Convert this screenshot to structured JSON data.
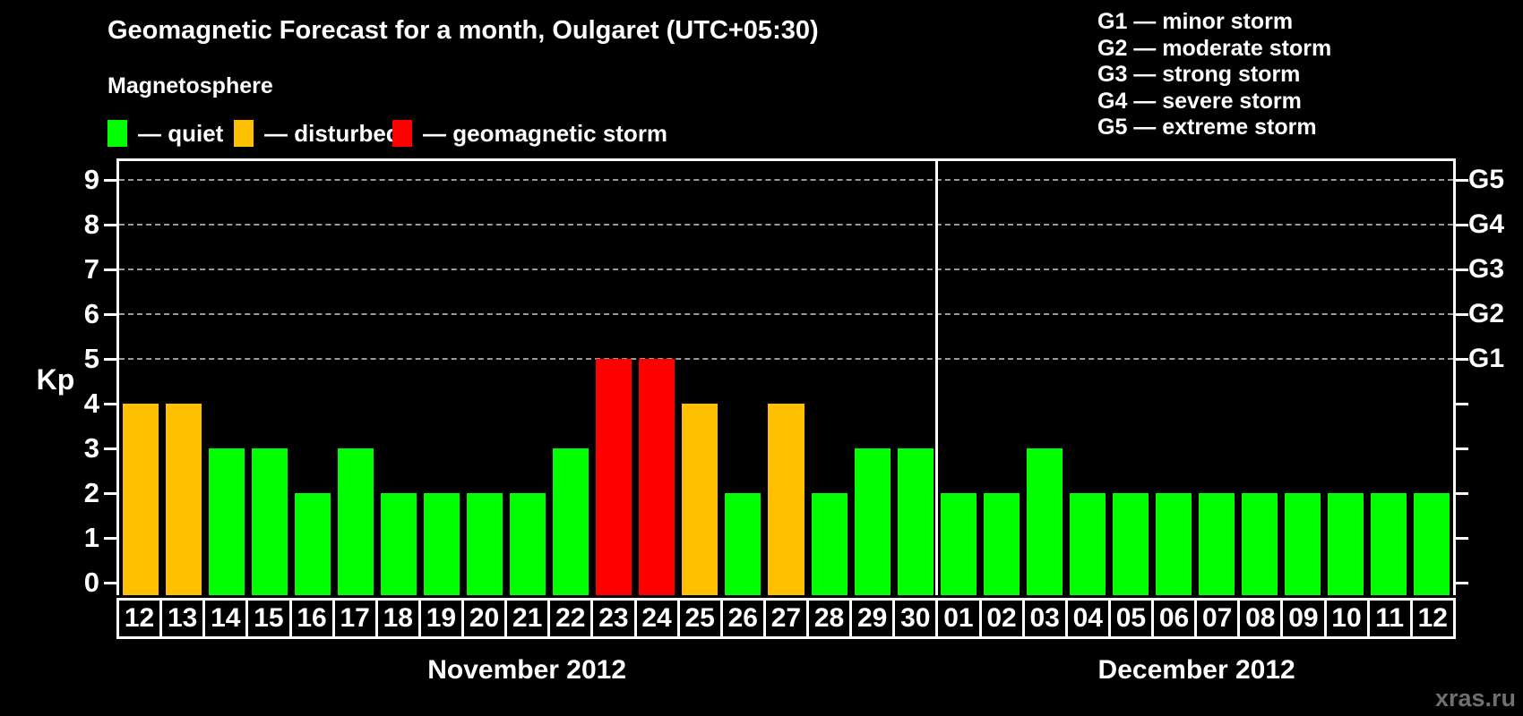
{
  "title": "Geomagnetic Forecast for a month, Oulgaret (UTC+05:30)",
  "subtitle": "Magnetosphere",
  "bar_legend": [
    {
      "key": "quiet",
      "label": "— quiet",
      "color": "#00ff00"
    },
    {
      "key": "disturbed",
      "label": "— disturbed",
      "color": "#ffc000"
    },
    {
      "key": "storm",
      "label": "— geomagnetic storm",
      "color": "#ff0000"
    }
  ],
  "storm_scale": [
    "G1 — minor storm",
    "G2 — moderate storm",
    "G3 — strong storm",
    "G4 — severe storm",
    "G5 — extreme storm"
  ],
  "watermark": "xras.ru",
  "chart_data": {
    "type": "bar",
    "ylabel": "Kp",
    "ylim": [
      0,
      9.4
    ],
    "yticks": [
      0,
      1,
      2,
      3,
      4,
      5,
      6,
      7,
      8,
      9
    ],
    "grid_levels": [
      5,
      6,
      7,
      8,
      9
    ],
    "grid_on": true,
    "legend_position": "top",
    "right_axis_labels": [
      {
        "kp": 5,
        "label": "G1"
      },
      {
        "kp": 6,
        "label": "G2"
      },
      {
        "kp": 7,
        "label": "G3"
      },
      {
        "kp": 8,
        "label": "G4"
      },
      {
        "kp": 9,
        "label": "G5"
      }
    ],
    "colors": {
      "quiet": "#00ff00",
      "disturbed": "#ffc000",
      "storm": "#ff0000"
    },
    "months": [
      {
        "label": "November 2012",
        "days": [
          {
            "day": "12",
            "kp": 4,
            "state": "disturbed"
          },
          {
            "day": "13",
            "kp": 4,
            "state": "disturbed"
          },
          {
            "day": "14",
            "kp": 3,
            "state": "quiet"
          },
          {
            "day": "15",
            "kp": 3,
            "state": "quiet"
          },
          {
            "day": "16",
            "kp": 2,
            "state": "quiet"
          },
          {
            "day": "17",
            "kp": 3,
            "state": "quiet"
          },
          {
            "day": "18",
            "kp": 2,
            "state": "quiet"
          },
          {
            "day": "19",
            "kp": 2,
            "state": "quiet"
          },
          {
            "day": "20",
            "kp": 2,
            "state": "quiet"
          },
          {
            "day": "21",
            "kp": 2,
            "state": "quiet"
          },
          {
            "day": "22",
            "kp": 3,
            "state": "quiet"
          },
          {
            "day": "23",
            "kp": 5,
            "state": "storm"
          },
          {
            "day": "24",
            "kp": 5,
            "state": "storm"
          },
          {
            "day": "25",
            "kp": 4,
            "state": "disturbed"
          },
          {
            "day": "26",
            "kp": 2,
            "state": "quiet"
          },
          {
            "day": "27",
            "kp": 4,
            "state": "disturbed"
          },
          {
            "day": "28",
            "kp": 2,
            "state": "quiet"
          },
          {
            "day": "29",
            "kp": 3,
            "state": "quiet"
          },
          {
            "day": "30",
            "kp": 3,
            "state": "quiet"
          }
        ]
      },
      {
        "label": "December 2012",
        "days": [
          {
            "day": "01",
            "kp": 2,
            "state": "quiet"
          },
          {
            "day": "02",
            "kp": 2,
            "state": "quiet"
          },
          {
            "day": "03",
            "kp": 3,
            "state": "quiet"
          },
          {
            "day": "04",
            "kp": 2,
            "state": "quiet"
          },
          {
            "day": "05",
            "kp": 2,
            "state": "quiet"
          },
          {
            "day": "06",
            "kp": 2,
            "state": "quiet"
          },
          {
            "day": "07",
            "kp": 2,
            "state": "quiet"
          },
          {
            "day": "08",
            "kp": 2,
            "state": "quiet"
          },
          {
            "day": "09",
            "kp": 2,
            "state": "quiet"
          },
          {
            "day": "10",
            "kp": 2,
            "state": "quiet"
          },
          {
            "day": "11",
            "kp": 2,
            "state": "quiet"
          },
          {
            "day": "12",
            "kp": 2,
            "state": "quiet"
          }
        ]
      }
    ]
  }
}
